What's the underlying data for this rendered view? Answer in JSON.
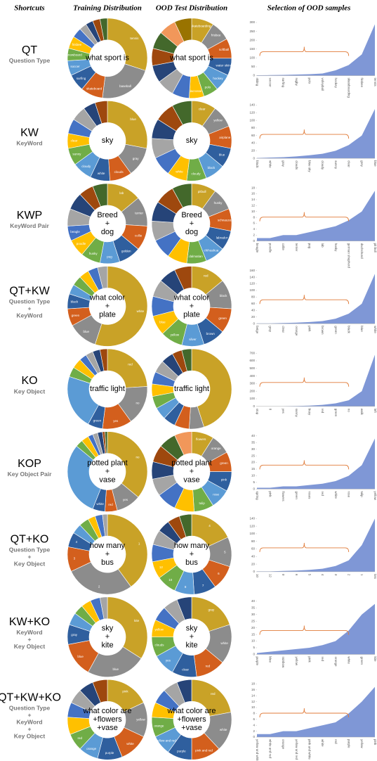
{
  "headers": [
    "Shortcuts",
    "Training Distribution",
    "OOD Test Distribution",
    "Selection of OOD samples"
  ],
  "palette": [
    "#c9a227",
    "#8c8c8c",
    "#d35f1d",
    "#2f5f9e",
    "#5b9bd5",
    "#70ad47",
    "#ffc000",
    "#4472c4",
    "#a5a5a5",
    "#264478",
    "#9e480e",
    "#43682b",
    "#f1975a",
    "#997300",
    "#698ed0",
    "#b7b7b7"
  ],
  "area_color": "#7f97d6",
  "brace_color": "#e07b39",
  "rows": [
    {
      "key": "QT",
      "desc": [
        "Question Type"
      ],
      "train": {
        "center": [
          "what sport is"
        ],
        "labels": [
          "tennis",
          "baseball",
          "skateboard",
          "surfing",
          "soccer",
          "snowboard",
          "frisbee",
          null,
          null,
          null,
          null,
          null
        ],
        "values": [
          30,
          22,
          9,
          7,
          6,
          5,
          5,
          4,
          3,
          3,
          3,
          3
        ]
      },
      "ood": {
        "center": [
          "what sport is"
        ],
        "labels": [
          "skateboarding",
          "frisbee",
          "softball",
          "water skiing",
          "hockey",
          "polo",
          "lacrosse",
          null,
          null,
          null,
          null,
          null,
          null,
          null
        ],
        "values": [
          9,
          8,
          8,
          7,
          7,
          6,
          6,
          7,
          7,
          7,
          7,
          7,
          7,
          7
        ]
      },
      "ood_samples": {
        "ylim": [
          0,
          300
        ],
        "yticks": [
          0,
          50,
          100,
          150,
          200,
          250,
          300
        ],
        "categories": [
          "skiing",
          "soccer",
          "surfing",
          "rugby",
          "polo",
          "volleyball",
          "hockey",
          "skateboarding",
          "frisbee",
          "tennis"
        ],
        "values": [
          2,
          3,
          4,
          6,
          8,
          12,
          30,
          60,
          120,
          290
        ]
      }
    },
    {
      "key": "KW",
      "desc": [
        "KeyWord"
      ],
      "train": {
        "center": [
          "sky"
        ],
        "labels": [
          "blue",
          "gray",
          "clouds",
          "white",
          "cloudy",
          "sunny",
          "clear",
          null,
          null,
          null,
          null
        ],
        "values": [
          28,
          12,
          9,
          8,
          8,
          7,
          6,
          6,
          6,
          5,
          5
        ]
      },
      "ood": {
        "center": [
          "sky"
        ],
        "labels": [
          "clear",
          "yellow",
          "airplane",
          "blue",
          "black",
          "cloudy",
          "white",
          null,
          null,
          null,
          null,
          null
        ],
        "values": [
          10,
          9,
          9,
          8,
          8,
          8,
          8,
          8,
          8,
          8,
          8,
          8
        ]
      },
      "ood_samples": {
        "ylim": [
          0,
          140
        ],
        "yticks": [
          0,
          20,
          40,
          60,
          80,
          100,
          120,
          140
        ],
        "categories": [
          "black",
          "white",
          "gray",
          "clouds",
          "blue sky",
          "cloudy",
          "sunny",
          "clear",
          "grey",
          "blue"
        ],
        "values": [
          1,
          2,
          3,
          5,
          8,
          12,
          20,
          35,
          60,
          130
        ]
      }
    },
    {
      "key": "KWP",
      "desc": [
        "KeyWord Pair"
      ],
      "train": {
        "center": [
          "Breed",
          "+",
          "dog"
        ],
        "labels": [
          "lab",
          "terrier",
          "collie",
          "golden",
          "pug",
          "husky",
          "poodle",
          "beagle",
          null,
          null,
          null,
          null
        ],
        "values": [
          14,
          12,
          10,
          9,
          8,
          8,
          7,
          6,
          7,
          7,
          6,
          6
        ]
      },
      "ood": {
        "center": [
          "Breed",
          "+",
          "dog"
        ],
        "labels": [
          "pitbull",
          "husky",
          "schnauzer",
          "labrador",
          "chihuahua",
          "dalmatian",
          null,
          null,
          null,
          null,
          null,
          null
        ],
        "values": [
          10,
          9,
          9,
          8,
          8,
          8,
          8,
          8,
          8,
          8,
          8,
          8
        ]
      },
      "ood_samples": {
        "ylim": [
          0,
          18
        ],
        "yticks": [
          0,
          2,
          4,
          6,
          8,
          10,
          12,
          14,
          16,
          18
        ],
        "categories": [
          "beagle",
          "poodle",
          "collie",
          "terrier",
          "pug",
          "lab",
          "husky",
          "german shepherd",
          "dachshund",
          "pit bull"
        ],
        "values": [
          1,
          1,
          2,
          2,
          3,
          4,
          5,
          7,
          10,
          17
        ]
      }
    },
    {
      "key": "QT+KW",
      "desc": [
        "Question Type",
        "+",
        "KeyWord"
      ],
      "train": {
        "center": [
          "what color",
          "+",
          "plate"
        ],
        "labels": [
          "white",
          "blue",
          "green",
          "black",
          null,
          null,
          null,
          null,
          null
        ],
        "values": [
          55,
          12,
          7,
          6,
          4,
          4,
          4,
          4,
          4
        ]
      },
      "ood": {
        "center": [
          "what color",
          "+",
          "plate"
        ],
        "labels": [
          "red",
          "black",
          "green",
          "brown",
          "silver",
          "yellow",
          "blue",
          null,
          null,
          null,
          null
        ],
        "values": [
          14,
          12,
          10,
          9,
          9,
          9,
          8,
          8,
          7,
          7,
          7
        ]
      },
      "ood_samples": {
        "ylim": [
          0,
          160
        ],
        "yticks": [
          0,
          20,
          40,
          60,
          80,
          100,
          120,
          140,
          160
        ],
        "categories": [
          "beige",
          "gray",
          "clear",
          "orange",
          "pink",
          "brown",
          "green",
          "black",
          "blue",
          "white"
        ],
        "values": [
          1,
          1,
          2,
          3,
          5,
          8,
          15,
          30,
          60,
          150
        ]
      }
    },
    {
      "key": "KO",
      "desc": [
        "Key Object"
      ],
      "train": {
        "center": [
          "traffic light"
        ],
        "labels": [
          "red",
          "no",
          "yes",
          "green",
          null,
          null,
          null,
          null,
          null,
          null,
          null
        ],
        "values": [
          24,
          16,
          12,
          6,
          22,
          4,
          4,
          3,
          3,
          3,
          3
        ]
      },
      "ood": {
        "center": [
          "traffic light"
        ],
        "labels": [
          null,
          null,
          null,
          null,
          null,
          null,
          null,
          null,
          null,
          null,
          null,
          null
        ],
        "values": [
          45,
          6,
          6,
          5,
          5,
          5,
          5,
          5,
          5,
          5,
          4,
          4
        ]
      },
      "ood_samples": {
        "ylim": [
          0,
          700
        ],
        "yticks": [
          0,
          100,
          200,
          300,
          400,
          500,
          600,
          700
        ],
        "categories": [
          "stop",
          "8",
          "yes",
          "sunny",
          "busy",
          "red",
          "green",
          "no",
          "walk",
          "left"
        ],
        "values": [
          1,
          2,
          3,
          5,
          10,
          20,
          40,
          80,
          200,
          680
        ]
      }
    },
    {
      "key": "KOP",
      "desc": [
        "Key Object Pair"
      ],
      "train": {
        "center": [
          "potted plant",
          "+",
          "vase"
        ],
        "labels": [
          "no",
          "yes",
          "red",
          "white",
          null,
          null,
          null,
          null,
          null,
          null,
          null,
          null
        ],
        "values": [
          36,
          10,
          5,
          5,
          30,
          3,
          3,
          2,
          2,
          2,
          1,
          1
        ]
      },
      "ood": {
        "center": [
          "potted plant",
          "+",
          "vase"
        ],
        "labels": [
          "flowers",
          "orange",
          "green",
          "pink",
          "rose",
          "tulip",
          null,
          null,
          null,
          null,
          null,
          null,
          null
        ],
        "values": [
          9,
          8,
          8,
          8,
          8,
          8,
          8,
          8,
          7,
          7,
          7,
          7,
          7
        ]
      },
      "ood_samples": {
        "ylim": [
          0,
          40
        ],
        "yticks": [
          0,
          5,
          10,
          15,
          20,
          25,
          30,
          35,
          40
        ],
        "categories": [
          "spring",
          "pink",
          "flowers",
          "green",
          "roses",
          "red",
          "white",
          "rose",
          "tulip",
          "yellow"
        ],
        "values": [
          1,
          1,
          2,
          2,
          3,
          4,
          6,
          10,
          18,
          38
        ]
      }
    },
    {
      "key": "QT+KO",
      "desc": [
        "Question Type",
        "+",
        "Key Object"
      ],
      "train": {
        "center": [
          "how many",
          "+",
          "bus"
        ],
        "labels": [
          "1",
          "2",
          "3",
          "4",
          null,
          null,
          null,
          null,
          null
        ],
        "values": [
          40,
          28,
          10,
          6,
          4,
          4,
          3,
          3,
          2
        ]
      },
      "ood": {
        "center": [
          "how many",
          "+",
          "bus"
        ],
        "labels": [
          "4",
          "5",
          "6",
          "7",
          "8",
          "10",
          "12",
          null,
          null,
          null,
          null,
          null
        ],
        "values": [
          18,
          12,
          10,
          9,
          8,
          8,
          7,
          7,
          6,
          5,
          5,
          5
        ]
      },
      "ood_samples": {
        "ylim": [
          0,
          140
        ],
        "yticks": [
          0,
          20,
          40,
          60,
          80,
          100,
          120,
          140
        ],
        "categories": [
          "10",
          "12",
          "0",
          "6",
          "5",
          "4",
          "3",
          "2",
          "1",
          "lots"
        ],
        "values": [
          1,
          1,
          2,
          3,
          5,
          8,
          15,
          30,
          70,
          140
        ]
      }
    },
    {
      "key": "KW+KO",
      "desc": [
        "KeyWord",
        "+",
        "Key Object"
      ],
      "train": {
        "center": [
          "sky",
          "+",
          "kite"
        ],
        "labels": [
          "kite",
          "blue",
          "blue",
          "gray",
          null,
          null,
          null,
          null,
          null
        ],
        "values": [
          34,
          24,
          14,
          8,
          5,
          4,
          4,
          4,
          3
        ]
      },
      "ood": {
        "center": [
          "sky",
          "+",
          "kite"
        ],
        "labels": [
          "gray",
          "white",
          "red",
          "clear",
          "yes",
          "clouds",
          "yellow",
          null,
          null,
          null
        ],
        "values": [
          20,
          16,
          12,
          10,
          9,
          8,
          7,
          6,
          6,
          6
        ]
      },
      "ood_samples": {
        "ylim": [
          0,
          40
        ],
        "yticks": [
          0,
          5,
          10,
          15,
          20,
          25,
          30,
          35,
          40
        ],
        "categories": [
          "purple",
          "blue",
          "rainbow",
          "yellow",
          "pink",
          "red",
          "orange",
          "white",
          "green",
          "kite"
        ],
        "values": [
          1,
          2,
          3,
          4,
          5,
          7,
          10,
          18,
          30,
          38
        ]
      }
    },
    {
      "key": "QT+KW+KO",
      "desc": [
        "Question Type",
        "+",
        "KeyWord",
        "+",
        "Key Object"
      ],
      "train": {
        "center": [
          "what color are",
          "+flowers",
          "+vase"
        ],
        "labels": [
          "pink",
          "yellow",
          "white",
          "purple",
          "orange",
          "red",
          null,
          null,
          null,
          null,
          null
        ],
        "values": [
          18,
          14,
          12,
          10,
          8,
          7,
          7,
          6,
          6,
          6,
          6
        ]
      },
      "ood": {
        "center": [
          "what color are",
          "+flowers",
          "+vase"
        ],
        "labels": [
          "red",
          "white",
          "pink and red",
          "purple",
          "yellow and red",
          "orange",
          null,
          null,
          null,
          null
        ],
        "values": [
          22,
          16,
          12,
          10,
          8,
          8,
          6,
          6,
          6,
          6
        ]
      },
      "ood_samples": {
        "ylim": [
          0,
          18
        ],
        "yticks": [
          0,
          2,
          4,
          6,
          8,
          10,
          12,
          14,
          16,
          18
        ],
        "categories": [
          "yellow and white",
          "white and red",
          "orange",
          "yellow and red",
          "pink and white",
          "white",
          "red",
          "purple",
          "yellow",
          "pink"
        ],
        "values": [
          1,
          1,
          2,
          2,
          3,
          4,
          5,
          8,
          12,
          17
        ]
      }
    }
  ]
}
